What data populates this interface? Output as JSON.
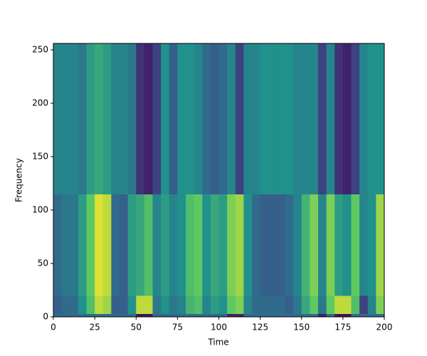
{
  "chart_data": {
    "type": "heatmap",
    "xlabel": "Time",
    "ylabel": "Frequency",
    "xlim": [
      0,
      200
    ],
    "ylim": [
      0,
      256
    ],
    "xticks": [
      0,
      25,
      50,
      75,
      100,
      125,
      150,
      175,
      200
    ],
    "yticks": [
      0,
      50,
      100,
      150,
      200,
      250
    ],
    "y_edges": [
      0,
      3,
      20,
      115,
      256
    ],
    "colormap": "viridis",
    "values": [
      [
        0.35,
        0.35,
        0.35,
        0.35,
        0.35,
        0.35,
        0.35,
        0.35,
        0.35,
        0.35,
        0.05,
        0.05,
        0.35,
        0.35,
        0.35,
        0.35,
        0.35,
        0.35,
        0.35,
        0.35,
        0.35,
        0.1,
        0.1,
        0.35,
        0.35,
        0.35,
        0.35,
        0.35,
        0.35,
        0.35,
        0.35,
        0.35,
        0.1,
        0.35,
        0.05,
        0.05,
        0.35,
        0.35,
        0.35,
        0.35
      ],
      [
        0.3,
        0.35,
        0.35,
        0.5,
        0.7,
        0.9,
        0.85,
        0.3,
        0.3,
        0.5,
        0.9,
        0.9,
        0.4,
        0.5,
        0.4,
        0.45,
        0.65,
        0.7,
        0.45,
        0.55,
        0.5,
        0.75,
        0.8,
        0.45,
        0.35,
        0.35,
        0.35,
        0.35,
        0.3,
        0.4,
        0.6,
        0.75,
        0.4,
        0.75,
        0.9,
        0.9,
        0.7,
        0.2,
        0.45,
        0.8
      ],
      [
        0.35,
        0.4,
        0.4,
        0.55,
        0.75,
        0.95,
        0.9,
        0.35,
        0.3,
        0.55,
        0.6,
        0.7,
        0.45,
        0.55,
        0.45,
        0.5,
        0.7,
        0.75,
        0.5,
        0.6,
        0.55,
        0.8,
        0.85,
        0.5,
        0.35,
        0.3,
        0.3,
        0.3,
        0.35,
        0.45,
        0.65,
        0.8,
        0.45,
        0.8,
        0.55,
        0.5,
        0.75,
        0.45,
        0.5,
        0.85
      ],
      [
        0.45,
        0.45,
        0.45,
        0.4,
        0.55,
        0.6,
        0.55,
        0.45,
        0.45,
        0.4,
        0.15,
        0.1,
        0.2,
        0.5,
        0.3,
        0.5,
        0.5,
        0.45,
        0.35,
        0.3,
        0.35,
        0.45,
        0.2,
        0.45,
        0.45,
        0.5,
        0.5,
        0.5,
        0.5,
        0.45,
        0.45,
        0.45,
        0.2,
        0.45,
        0.15,
        0.1,
        0.2,
        0.45,
        0.5,
        0.5
      ]
    ]
  }
}
